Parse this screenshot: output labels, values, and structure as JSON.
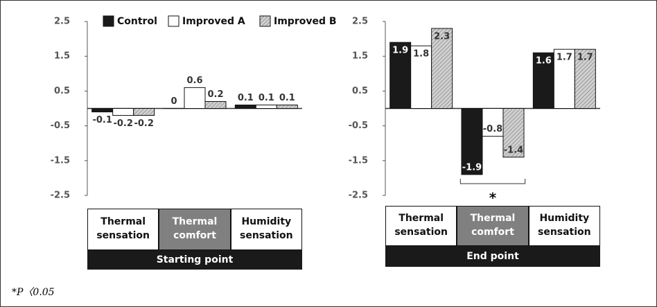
{
  "chart_data": [
    {
      "type": "bar",
      "group_label": "Starting point",
      "categories": [
        "Thermal sensation",
        "Thermal comfort",
        "Humidity sensation"
      ],
      "series": [
        {
          "name": "Control",
          "color": "#1a1a1a",
          "values": [
            -0.1,
            0,
            0.1
          ]
        },
        {
          "name": "Improved A",
          "color": "#ffffff",
          "values": [
            -0.2,
            0.6,
            0.1
          ]
        },
        {
          "name": "Improved B",
          "color": "#d0d0d0",
          "values": [
            -0.2,
            0.2,
            0.1
          ]
        }
      ],
      "ylim": [
        -2.5,
        2.5
      ],
      "yticks": [
        2.5,
        1.5,
        0.5,
        -0.5,
        -1.5,
        -2.5
      ],
      "legend": "top"
    },
    {
      "type": "bar",
      "group_label": "End point",
      "categories": [
        "Thermal sensation",
        "Thermal comfort",
        "Humidity sensation"
      ],
      "series": [
        {
          "name": "Control",
          "color": "#1a1a1a",
          "values": [
            1.9,
            -1.9,
            1.6
          ]
        },
        {
          "name": "Improved A",
          "color": "#ffffff",
          "values": [
            1.8,
            -0.8,
            1.7
          ]
        },
        {
          "name": "Improved B",
          "color": "#d0d0d0",
          "values": [
            2.3,
            -1.4,
            1.7
          ]
        }
      ],
      "ylim": [
        -2.5,
        2.5
      ],
      "yticks": [
        2.5,
        1.5,
        0.5,
        -0.5,
        -1.5,
        -2.5
      ],
      "annotation": "*"
    }
  ],
  "footnote": "*P〈0.05"
}
